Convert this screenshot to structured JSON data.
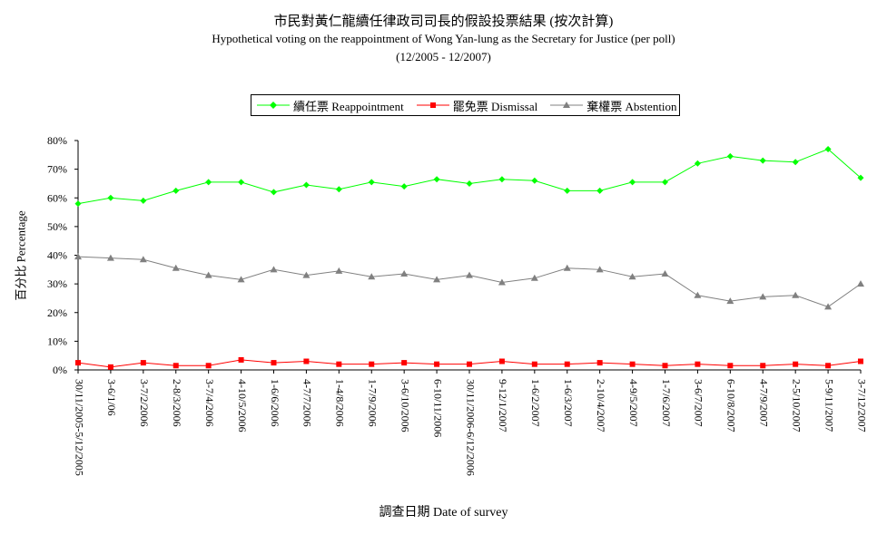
{
  "chart_data": {
    "type": "line",
    "title": "市民對黃仁龍續任律政司司長的假設投票結果 (按次計算)",
    "subtitle": "Hypothetical voting on the reappointment of Wong Yan-lung as the Secretary for Justice (per poll)",
    "period": "(12/2005 - 12/2007)",
    "xlabel": "調查日期  Date of survey",
    "ylabel": "百分比  Percentage",
    "ylim": [
      0,
      80
    ],
    "yticks": [
      "0%",
      "10%",
      "20%",
      "30%",
      "40%",
      "50%",
      "60%",
      "70%",
      "80%"
    ],
    "grid": false,
    "legend_position": "top",
    "categories": [
      "30/11/2005-5/12/2005",
      "3-6/1/06",
      "3-7/2/2006",
      "2-8/3/2006",
      "3-7/4/2006",
      "4-10/5/2006",
      "1-6/6/2006",
      "4-7/7/2006",
      "1-4/8/2006",
      "1-7/9/2006",
      "3-6/10/2006",
      "6-10/11/2006",
      "30/11/2006-6/12/2006",
      "9-12/1/2007",
      "1-6/2/2007",
      "1-6/3/2007",
      "2-10/4/2007",
      "4-9/5/2007",
      "1-7/6/2007",
      "3-6/7/2007",
      "6-10/8/2007",
      "4-7/9/2007",
      "2-5/10/2007",
      "5-9/11/2007",
      "3-7/12/2007"
    ],
    "series": [
      {
        "name": "續任票  Reappointment",
        "color": "#00ff00",
        "marker": "diamond",
        "values": [
          58,
          60,
          59,
          62.5,
          65.5,
          65.5,
          62,
          64.5,
          63,
          65.5,
          64,
          66.5,
          65,
          66.5,
          66,
          62.5,
          62.5,
          65.5,
          65.5,
          72,
          74.5,
          73,
          72.5,
          77,
          67
        ]
      },
      {
        "name": "罷免票  Dismissal",
        "color": "#ff0000",
        "marker": "square",
        "values": [
          2.5,
          1,
          2.5,
          1.5,
          1.5,
          3.5,
          2.5,
          3,
          2,
          2,
          2.5,
          2,
          2,
          3,
          2,
          2,
          2.5,
          2,
          1.5,
          2,
          1.5,
          1.5,
          2,
          1.5,
          3
        ]
      },
      {
        "name": "棄權票  Abstention",
        "color": "#808080",
        "marker": "triangle",
        "values": [
          39.5,
          39,
          38.5,
          35.5,
          33,
          31.5,
          35,
          33,
          34.5,
          32.5,
          33.5,
          31.5,
          33,
          30.5,
          32,
          35.5,
          35,
          32.5,
          33.5,
          26,
          24,
          25.5,
          26,
          22,
          30
        ]
      }
    ]
  }
}
